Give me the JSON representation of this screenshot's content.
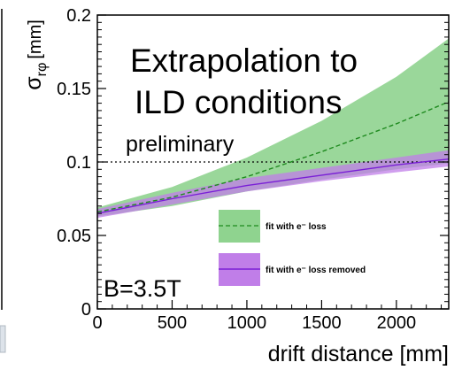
{
  "chart_data": {
    "type": "line",
    "xlabel": "drift distance [mm]",
    "ylabel": "σ",
    "ylabel_sub": "rφ",
    "ylabel_unit": "[mm]",
    "xlim": [
      0,
      2350
    ],
    "ylim": [
      0,
      0.2
    ],
    "x_ticks": [
      0,
      500,
      1000,
      1500,
      2000
    ],
    "x_tick_labels": [
      "0",
      "500",
      "1000",
      "1500",
      "2000"
    ],
    "y_ticks": [
      0,
      0.05,
      0.1,
      0.15,
      0.2
    ],
    "y_tick_labels": [
      "0",
      "0.05",
      "0.1",
      "0.15",
      "0.2"
    ],
    "reference_line": {
      "y": 0.1,
      "style": "dotted"
    },
    "annotations": {
      "title_line1": "Extrapolation to",
      "title_line2": "ILD conditions",
      "preliminary": "preliminary",
      "field": "B=3.5T"
    },
    "series": [
      {
        "name": "fit with e⁻ loss",
        "color": "#1e8a1e",
        "band_color": "#8fd38f",
        "line_style": "dashed",
        "x": [
          0,
          500,
          1000,
          1500,
          2000,
          2350
        ],
        "y": [
          0.066,
          0.076,
          0.09,
          0.107,
          0.126,
          0.141
        ],
        "band_low": [
          0.063,
          0.07,
          0.08,
          0.088,
          0.095,
          0.099
        ],
        "band_high": [
          0.069,
          0.083,
          0.103,
          0.128,
          0.158,
          0.184
        ]
      },
      {
        "name": "fit with e⁻ loss removed",
        "color": "#7a1fd6",
        "band_color": "#c07ee8",
        "line_style": "solid",
        "x": [
          0,
          500,
          1000,
          1500,
          2000,
          2350
        ],
        "y": [
          0.065,
          0.075,
          0.084,
          0.091,
          0.098,
          0.102
        ],
        "band_low": [
          0.062,
          0.071,
          0.08,
          0.087,
          0.093,
          0.097
        ],
        "band_high": [
          0.068,
          0.079,
          0.089,
          0.096,
          0.103,
          0.108
        ]
      }
    ],
    "legend": {
      "position": "bottom-right",
      "entries": [
        "fit with e⁻ loss",
        "fit with e⁻ loss removed"
      ]
    }
  }
}
